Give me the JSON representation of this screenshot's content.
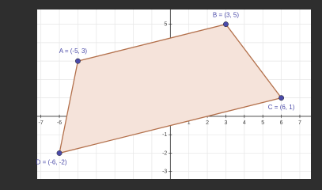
{
  "chart_data": {
    "type": "polygon",
    "series": [
      {
        "color": "#4a4aa8",
        "fill": "#f5e3da",
        "stroke": "#b3704b",
        "x": [
          -5,
          3,
          6,
          -6
        ],
        "y": [
          3,
          5,
          1,
          -2
        ],
        "point_labels": [
          "A = (-5, 3)",
          "B = (3, 5)",
          "C = (6, 1)",
          "D = (-6, -2)"
        ]
      }
    ],
    "xlim": [
      -7.2,
      7.6
    ],
    "ylim": [
      -3.4,
      5.8
    ],
    "xticks": [
      -7,
      -6,
      -5,
      -4,
      -3,
      -2,
      -1,
      0,
      1,
      2,
      3,
      4,
      5,
      6,
      7
    ],
    "yticks": [
      -3,
      -2,
      -1,
      1,
      2,
      3,
      4,
      5
    ],
    "grid": true
  }
}
